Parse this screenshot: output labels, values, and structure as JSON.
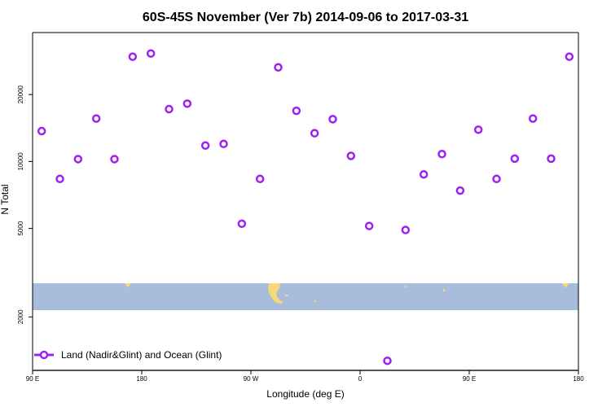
{
  "chart_data": {
    "type": "scatter",
    "title": "60S-45S November (Ver 7b)   2014-09-06 to 2017-03-31",
    "xlabel": "Longitude (deg E)",
    "ylabel": "N Total",
    "y_scale": "log",
    "xlim": [
      90,
      540
    ],
    "ylim": [
      1150,
      38000
    ],
    "x_ticks": [
      {
        "value": 90,
        "label": "90 E"
      },
      {
        "value": 180,
        "label": "180"
      },
      {
        "value": 270,
        "label": "90 W"
      },
      {
        "value": 360,
        "label": "0"
      },
      {
        "value": 450,
        "label": "90 E"
      },
      {
        "value": 540,
        "label": "180"
      }
    ],
    "y_ticks": [
      {
        "value": 2000,
        "label": "2000"
      },
      {
        "value": 5000,
        "label": "5000"
      },
      {
        "value": 10000,
        "label": "10000"
      },
      {
        "value": 20000,
        "label": "20000"
      }
    ],
    "legend": {
      "position": "bottom-left",
      "entries": [
        "Land (Nadir&Glint) and Ocean (Glint)"
      ]
    },
    "series": [
      {
        "name": "Land (Nadir&Glint) and Ocean (Glint)",
        "color": "#a020f0",
        "marker": "open-circle",
        "x": [
          97.5,
          112.5,
          127.5,
          142.5,
          157.5,
          172.5,
          187.5,
          202.5,
          217.5,
          232.5,
          247.5,
          262.5,
          277.5,
          292.5,
          307.5,
          322.5,
          337.5,
          352.5,
          367.5,
          382.5,
          397.5,
          412.5,
          427.5,
          442.5,
          457.5,
          472.5,
          487.5,
          502.5,
          517.5,
          532.5
        ],
        "y": [
          13700,
          8350,
          10250,
          15600,
          10250,
          29600,
          30600,
          17200,
          18200,
          11800,
          12000,
          5250,
          8350,
          26500,
          16900,
          13400,
          15500,
          10600,
          5130,
          1270,
          4920,
          8750,
          10800,
          7400,
          13900,
          8350,
          10300,
          15600,
          10300,
          29600
        ]
      }
    ],
    "map_band": {
      "ocean_color": "#a8bcdc",
      "land_color": "#f8d878"
    }
  }
}
